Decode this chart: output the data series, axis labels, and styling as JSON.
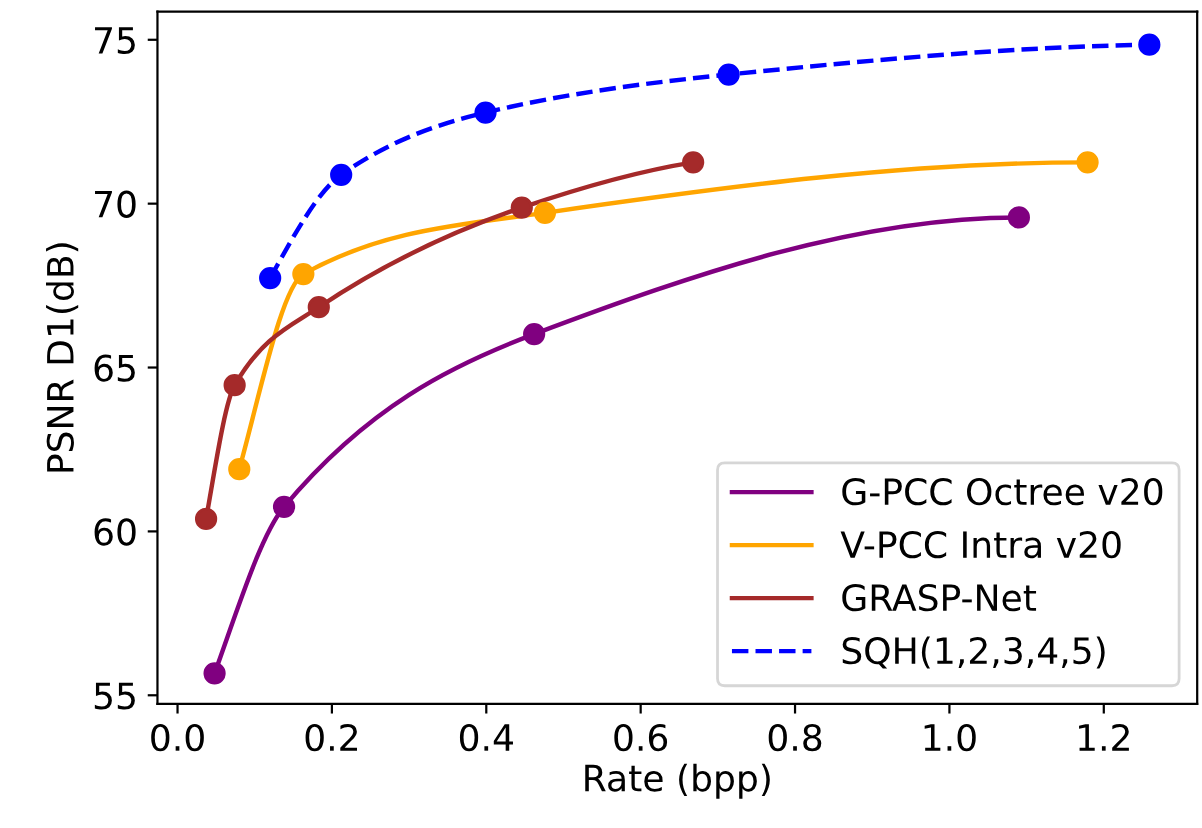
{
  "chart_data": {
    "type": "line",
    "xlabel": "Rate (bpp)",
    "ylabel": "PSNR D1(dB)",
    "xlim": [
      -0.026,
      1.321
    ],
    "ylim": [
      54.74,
      75.86
    ],
    "xticks": [
      {
        "value": 0.0,
        "label": "0.0"
      },
      0.2,
      0.4,
      0.6,
      0.8,
      {
        "value": 1.0,
        "label": "1.0"
      },
      1.2
    ],
    "yticks": [
      55,
      60,
      65,
      70,
      75
    ],
    "grid": false,
    "legend": "bottom right",
    "marker": "circle",
    "series": [
      {
        "name": "G-PCC Octree v20",
        "color": "#800080",
        "line_style": "solid",
        "x": [
          0.048,
          0.138,
          0.462,
          1.09
        ],
        "values": [
          55.67,
          60.75,
          66.02,
          69.58
        ]
      },
      {
        "name": "V-PCC Intra v20",
        "color": "#ffa500",
        "line_style": "solid",
        "x": [
          0.08,
          0.163,
          0.476,
          1.179
        ],
        "values": [
          61.9,
          67.85,
          69.72,
          71.26
        ]
      },
      {
        "name": "GRASP-Net",
        "color": "#a52a2a",
        "line_style": "solid",
        "x": [
          0.037,
          0.074,
          0.183,
          0.446,
          0.668
        ],
        "values": [
          60.38,
          64.46,
          66.84,
          69.88,
          71.26
        ]
      },
      {
        "name": "SQH(1,2,3,4,5)",
        "color": "#0000ff",
        "line_style": "dashed",
        "x": [
          0.12,
          0.212,
          0.399,
          0.714,
          1.259
        ],
        "values": [
          67.73,
          70.88,
          72.78,
          73.94,
          74.85
        ]
      }
    ]
  }
}
